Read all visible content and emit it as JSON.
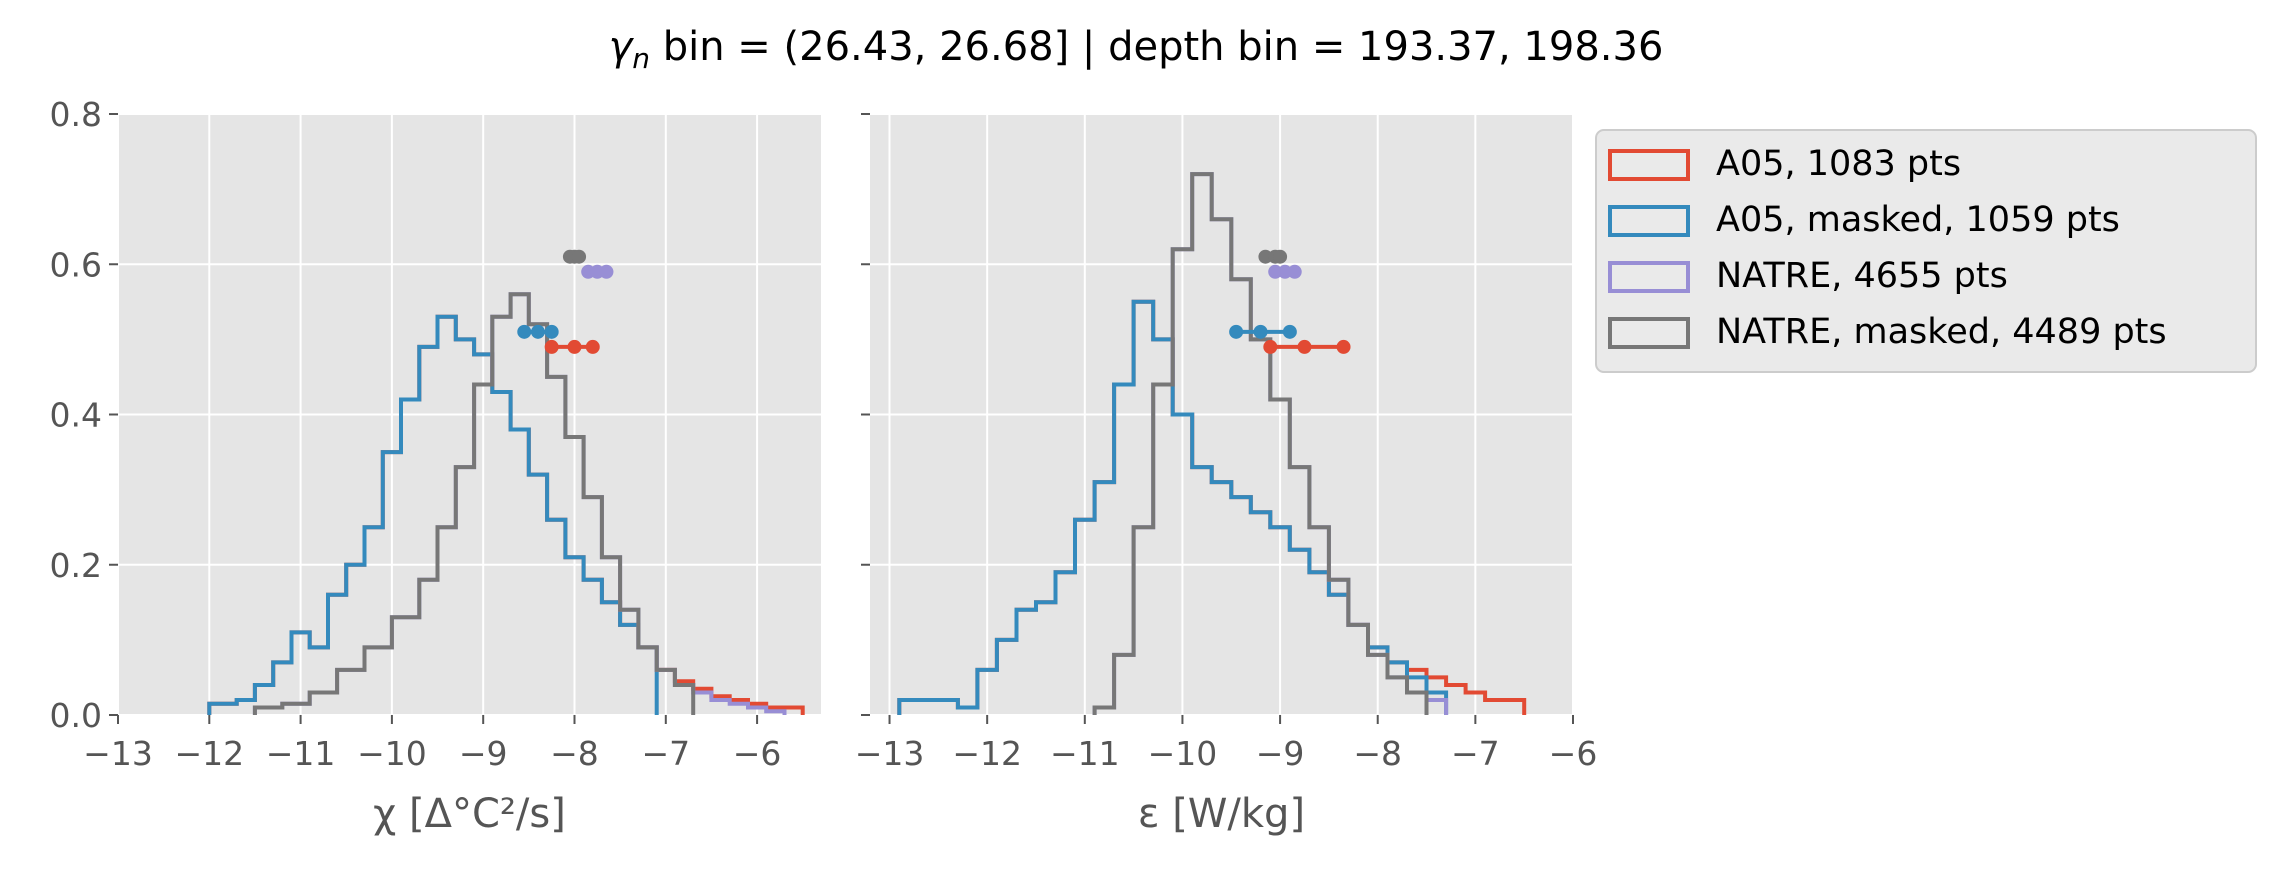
{
  "figure": {
    "title_symbol": "γ",
    "title_subscript": "n",
    "title_rest": " bin = (26.43, 26.68] | depth bin = 193.37, 198.36"
  },
  "legend": {
    "placement": "outside-right",
    "entries": [
      {
        "label": "A05, 1083 pts",
        "color": "#e24a33"
      },
      {
        "label": "A05, masked,  1059 pts",
        "color": "#348abd"
      },
      {
        "label": "NATRE, 4655 pts",
        "color": "#988ed5"
      },
      {
        "label": "NATRE, masked,  4489 pts",
        "color": "#777777"
      }
    ]
  },
  "chart_data": [
    {
      "type": "histogram-step",
      "xlabel": "χ [Δ°C²/s]",
      "ylabel": "",
      "xlim": [
        -13,
        -5.3
      ],
      "ylim": [
        0,
        0.8
      ],
      "xticks": [
        -13,
        -12,
        -11,
        -10,
        -9,
        -8,
        -7,
        -6
      ],
      "xtick_labels": [
        "−13",
        "−12",
        "−11",
        "−10",
        "−9",
        "−8",
        "−7",
        "−6"
      ],
      "yticks": [
        0,
        0.2,
        0.4,
        0.6,
        0.8
      ],
      "ytick_labels": [
        "0.0",
        "0.2",
        "0.4",
        "0.6",
        "0.8"
      ],
      "grid": true,
      "series": [
        {
          "name": "A05, 1083 pts",
          "color": "#e24a33",
          "z": 1,
          "edges": [
            -12.0,
            -11.7,
            -11.5,
            -11.3,
            -11.1,
            -10.9,
            -10.7,
            -10.5,
            -10.3,
            -10.1,
            -9.9,
            -9.7,
            -9.5,
            -9.3,
            -9.1,
            -8.9,
            -8.7,
            -8.5,
            -8.3,
            -8.1,
            -7.9,
            -7.7,
            -7.5,
            -7.3,
            -7.1,
            -6.9,
            -6.7,
            -6.5,
            -6.3,
            -6.1,
            -5.9,
            -5.7,
            -5.5
          ],
          "values": [
            0.015,
            0.02,
            0.04,
            0.07,
            0.11,
            0.09,
            0.16,
            0.2,
            0.25,
            0.35,
            0.42,
            0.49,
            0.53,
            0.5,
            0.48,
            0.43,
            0.38,
            0.32,
            0.26,
            0.21,
            0.18,
            0.15,
            0.12,
            0.09,
            0.06,
            0.045,
            0.035,
            0.025,
            0.02,
            0.015,
            0.01,
            0.01
          ]
        },
        {
          "name": "A05, masked,  1059 pts",
          "color": "#348abd",
          "z": 2,
          "edges": [
            -12.0,
            -11.7,
            -11.5,
            -11.3,
            -11.1,
            -10.9,
            -10.7,
            -10.5,
            -10.3,
            -10.1,
            -9.9,
            -9.7,
            -9.5,
            -9.3,
            -9.1,
            -8.9,
            -8.7,
            -8.5,
            -8.3,
            -8.1,
            -7.9,
            -7.7,
            -7.5,
            -7.3,
            -7.1
          ],
          "values": [
            0.015,
            0.02,
            0.04,
            0.07,
            0.11,
            0.09,
            0.16,
            0.2,
            0.25,
            0.35,
            0.42,
            0.49,
            0.53,
            0.5,
            0.48,
            0.43,
            0.38,
            0.32,
            0.26,
            0.21,
            0.18,
            0.15,
            0.12,
            0.09
          ]
        },
        {
          "name": "NATRE, 4655 pts",
          "color": "#988ed5",
          "z": 3,
          "edges": [
            -11.5,
            -11.2,
            -10.9,
            -10.6,
            -10.3,
            -10.0,
            -9.7,
            -9.5,
            -9.3,
            -9.1,
            -8.9,
            -8.7,
            -8.5,
            -8.3,
            -8.1,
            -7.9,
            -7.7,
            -7.5,
            -7.3,
            -7.1,
            -6.9,
            -6.7,
            -6.5,
            -6.3,
            -6.1,
            -5.9,
            -5.7
          ],
          "values": [
            0.01,
            0.015,
            0.03,
            0.06,
            0.09,
            0.13,
            0.18,
            0.25,
            0.33,
            0.44,
            0.53,
            0.56,
            0.52,
            0.45,
            0.37,
            0.29,
            0.21,
            0.14,
            0.09,
            0.06,
            0.04,
            0.03,
            0.02,
            0.015,
            0.01,
            0.005
          ]
        },
        {
          "name": "NATRE, masked,  4489 pts",
          "color": "#777777",
          "z": 4,
          "edges": [
            -11.5,
            -11.2,
            -10.9,
            -10.6,
            -10.3,
            -10.0,
            -9.7,
            -9.5,
            -9.3,
            -9.1,
            -8.9,
            -8.7,
            -8.5,
            -8.3,
            -8.1,
            -7.9,
            -7.7,
            -7.5,
            -7.3,
            -7.1,
            -6.9,
            -6.7
          ],
          "values": [
            0.01,
            0.015,
            0.03,
            0.06,
            0.09,
            0.13,
            0.18,
            0.25,
            0.33,
            0.44,
            0.53,
            0.56,
            0.52,
            0.45,
            0.37,
            0.29,
            0.21,
            0.14,
            0.09,
            0.06,
            0.04
          ]
        }
      ],
      "markers": [
        {
          "series": "A05, 1083 pts",
          "color": "#e24a33",
          "y": 0.49,
          "x": [
            -8.25,
            -8.0,
            -7.8
          ]
        },
        {
          "series": "A05, masked,  1059 pts",
          "color": "#348abd",
          "y": 0.51,
          "x": [
            -8.55,
            -8.4,
            -8.25
          ]
        },
        {
          "series": "NATRE, 4655 pts",
          "color": "#988ed5",
          "y": 0.59,
          "x": [
            -7.85,
            -7.75,
            -7.65
          ]
        },
        {
          "series": "NATRE, masked,  4489 pts",
          "color": "#777777",
          "y": 0.61,
          "x": [
            -8.05,
            -8.0,
            -7.95
          ]
        }
      ]
    },
    {
      "type": "histogram-step",
      "xlabel": "ε [W/kg]",
      "ylabel": "",
      "xlim": [
        -13.2,
        -6
      ],
      "ylim": [
        0,
        0.8
      ],
      "xticks": [
        -13,
        -12,
        -11,
        -10,
        -9,
        -8,
        -7,
        -6
      ],
      "xtick_labels": [
        "−13",
        "−12",
        "−11",
        "−10",
        "−9",
        "−8",
        "−7",
        "−6"
      ],
      "yticks": [
        0,
        0.2,
        0.4,
        0.6,
        0.8
      ],
      "ytick_labels": [
        "",
        "",
        "",
        "",
        ""
      ],
      "grid": true,
      "series": [
        {
          "name": "A05, 1083 pts",
          "color": "#e24a33",
          "z": 1,
          "edges": [
            -12.9,
            -12.3,
            -12.1,
            -11.9,
            -11.7,
            -11.5,
            -11.3,
            -11.1,
            -10.9,
            -10.7,
            -10.5,
            -10.3,
            -10.1,
            -9.9,
            -9.7,
            -9.5,
            -9.3,
            -9.1,
            -8.9,
            -8.7,
            -8.5,
            -8.3,
            -8.1,
            -7.9,
            -7.7,
            -7.5,
            -7.3,
            -7.1,
            -6.9,
            -6.7,
            -6.5
          ],
          "values": [
            0.02,
            0.01,
            0.06,
            0.1,
            0.14,
            0.15,
            0.19,
            0.26,
            0.31,
            0.44,
            0.55,
            0.5,
            0.4,
            0.33,
            0.31,
            0.29,
            0.27,
            0.25,
            0.22,
            0.19,
            0.16,
            0.12,
            0.09,
            0.07,
            0.06,
            0.05,
            0.04,
            0.03,
            0.02,
            0.02
          ]
        },
        {
          "name": "A05, masked,  1059 pts",
          "color": "#348abd",
          "z": 2,
          "edges": [
            -12.9,
            -12.3,
            -12.1,
            -11.9,
            -11.7,
            -11.5,
            -11.3,
            -11.1,
            -10.9,
            -10.7,
            -10.5,
            -10.3,
            -10.1,
            -9.9,
            -9.7,
            -9.5,
            -9.3,
            -9.1,
            -8.9,
            -8.7,
            -8.5,
            -8.3,
            -8.1,
            -7.9,
            -7.7,
            -7.5,
            -7.3
          ],
          "values": [
            0.02,
            0.01,
            0.06,
            0.1,
            0.14,
            0.15,
            0.19,
            0.26,
            0.31,
            0.44,
            0.55,
            0.5,
            0.4,
            0.33,
            0.31,
            0.29,
            0.27,
            0.25,
            0.22,
            0.19,
            0.16,
            0.12,
            0.09,
            0.07,
            0.05,
            0.03
          ]
        },
        {
          "name": "NATRE, 4655 pts",
          "color": "#988ed5",
          "z": 3,
          "edges": [
            -10.9,
            -10.7,
            -10.5,
            -10.3,
            -10.1,
            -9.9,
            -9.7,
            -9.5,
            -9.3,
            -9.1,
            -8.9,
            -8.7,
            -8.5,
            -8.3,
            -8.1,
            -7.9,
            -7.7,
            -7.5,
            -7.3
          ],
          "values": [
            0.01,
            0.08,
            0.25,
            0.44,
            0.62,
            0.72,
            0.66,
            0.58,
            0.5,
            0.42,
            0.33,
            0.25,
            0.18,
            0.12,
            0.08,
            0.05,
            0.03,
            0.02
          ]
        },
        {
          "name": "NATRE, masked,  4489 pts",
          "color": "#777777",
          "z": 4,
          "edges": [
            -10.9,
            -10.7,
            -10.5,
            -10.3,
            -10.1,
            -9.9,
            -9.7,
            -9.5,
            -9.3,
            -9.1,
            -8.9,
            -8.7,
            -8.5,
            -8.3,
            -8.1,
            -7.9,
            -7.7,
            -7.5
          ],
          "values": [
            0.01,
            0.08,
            0.25,
            0.44,
            0.62,
            0.72,
            0.66,
            0.58,
            0.5,
            0.42,
            0.33,
            0.25,
            0.18,
            0.12,
            0.08,
            0.05,
            0.03
          ]
        }
      ],
      "markers": [
        {
          "series": "A05, 1083 pts",
          "color": "#e24a33",
          "y": 0.49,
          "x": [
            -9.1,
            -8.75,
            -8.35
          ]
        },
        {
          "series": "A05, masked,  1059 pts",
          "color": "#348abd",
          "y": 0.51,
          "x": [
            -9.45,
            -9.2,
            -8.9
          ]
        },
        {
          "series": "NATRE, 4655 pts",
          "color": "#988ed5",
          "y": 0.59,
          "x": [
            -9.05,
            -8.95,
            -8.85
          ]
        },
        {
          "series": "NATRE, masked,  4489 pts",
          "color": "#777777",
          "y": 0.61,
          "x": [
            -9.15,
            -9.05,
            -9.0
          ]
        }
      ]
    }
  ]
}
